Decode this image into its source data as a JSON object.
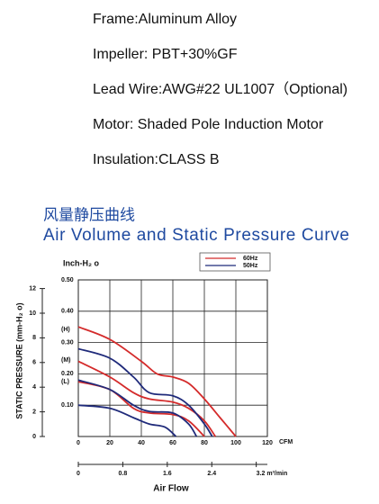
{
  "specs": [
    "Frame:Aluminum Alloy",
    "Impeller: PBT+30%GF",
    "Lead Wire:AWG#22 UL1007（Optional)",
    "Motor: Shaded Pole Induction Motor",
    "Insulation:CLASS B"
  ],
  "chart_data": {
    "type": "line",
    "title_cn": "风量静压曲线",
    "title": "Air Volume and Static Pressure Curve",
    "y_label": "Inch-H₂ o",
    "y2_label": "STATIC PRESSURE (mm-H₂ o)",
    "x_label": "CFM",
    "x2_label": "Air Flow",
    "annotations": [
      "(H)",
      "(M)",
      "(L)"
    ],
    "xlim": [
      0,
      120
    ],
    "xticks": [
      0,
      20,
      40,
      60,
      80,
      100,
      120
    ],
    "x2lim": [
      0,
      3.4
    ],
    "x2ticks": [
      0,
      0.8,
      1.6,
      2.4,
      {
        "value": 3.2,
        "label": "3.2 m³/min"
      }
    ],
    "ylim": [
      0,
      0.5
    ],
    "yticks": [
      {
        "value": 0.1,
        "label": "0.10"
      },
      {
        "value": 0.2,
        "label": "0.20"
      },
      {
        "value": 0.3,
        "label": "0.30"
      },
      {
        "value": 0.4,
        "label": "0.40"
      },
      {
        "value": 0.5,
        "label": "0.50"
      }
    ],
    "y2lim": [
      0,
      12.7
    ],
    "y2ticks": [
      0,
      2,
      4,
      6,
      8,
      10,
      12
    ],
    "grid": true,
    "series": [
      {
        "name": "60Hz",
        "color": "#d42b2b",
        "lines": [
          {
            "x": [
              0,
              20,
              40,
              50,
              60,
              70,
              80,
              90,
              100
            ],
            "values": [
              0.35,
              0.31,
              0.24,
              0.2,
              0.19,
              0.17,
              0.12,
              0.06,
              0
            ]
          },
          {
            "x": [
              0,
              20,
              35,
              45,
              60,
              70,
              80,
              87
            ],
            "values": [
              0.24,
              0.19,
              0.14,
              0.12,
              0.11,
              0.09,
              0.05,
              0
            ]
          },
          {
            "x": [
              0,
              20,
              35,
              45,
              60,
              70,
              80
            ],
            "values": [
              0.175,
              0.15,
              0.09,
              0.075,
              0.07,
              0.05,
              0
            ]
          }
        ]
      },
      {
        "name": "50Hz",
        "color": "#1f2a7a",
        "lines": [
          {
            "x": [
              0,
              20,
              35,
              45,
              60,
              70,
              80,
              85
            ],
            "values": [
              0.28,
              0.25,
              0.19,
              0.14,
              0.13,
              0.1,
              0.04,
              0
            ]
          },
          {
            "x": [
              0,
              20,
              35,
              45,
              60,
              70,
              75
            ],
            "values": [
              0.18,
              0.15,
              0.1,
              0.08,
              0.075,
              0.04,
              0
            ]
          },
          {
            "x": [
              0,
              20,
              35,
              45,
              55,
              62
            ],
            "values": [
              0.1,
              0.09,
              0.06,
              0.04,
              0.03,
              0
            ]
          }
        ]
      }
    ]
  }
}
